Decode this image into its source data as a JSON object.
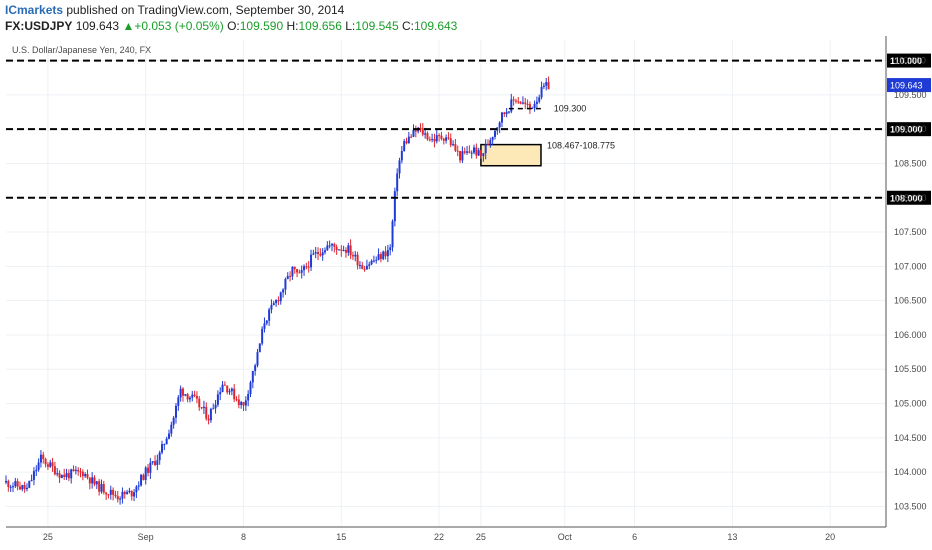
{
  "header": {
    "publisher": "ICmarkets",
    "published_text": "published on TradingView.com, September 30, 2014",
    "symbol": "FX:USDJPY",
    "last": "109.643",
    "change_arrow": "▲",
    "change": "+0.053 (+0.05%)",
    "o_label": "O:",
    "o_value": "109.590",
    "h_label": "H:",
    "h_value": "109.656",
    "l_label": "L:",
    "l_value": "109.545",
    "c_label": "C:",
    "c_value": "109.643"
  },
  "chart_data": {
    "type": "candlestick",
    "title": "U.S. Dollar/Japanese Yen, 240, FX",
    "x_tick_labels": [
      "25",
      "Sep",
      "8",
      "15",
      "22",
      "25",
      "Oct",
      "6",
      "13",
      "20"
    ],
    "x_tick_days": [
      -7,
      0,
      7,
      14,
      21,
      24,
      30,
      35,
      42,
      49
    ],
    "x_range_days": [
      -10,
      53
    ],
    "ylim": [
      103.2,
      110.3
    ],
    "y_ticks": [
      103.5,
      104.0,
      104.5,
      105.0,
      105.5,
      106.0,
      106.5,
      107.0,
      107.5,
      108.0,
      108.5,
      109.0,
      109.5,
      110.0
    ],
    "y_tick_labels": [
      "103.500",
      "104.000",
      "104.500",
      "105.000",
      "105.500",
      "106.000",
      "106.500",
      "107.000",
      "107.500",
      "108.000",
      "108.500",
      "109.000",
      "109.500",
      "110.000"
    ],
    "levels": [
      {
        "price": 110.0,
        "label": "110.000",
        "style": "dashed"
      },
      {
        "price": 109.0,
        "label": "109.000",
        "style": "dashed"
      },
      {
        "price": 108.0,
        "label": "108.000",
        "style": "dashed"
      }
    ],
    "short_level": {
      "price": 109.3,
      "label": "109.300",
      "from_day": 26.0,
      "to_day": 28.5
    },
    "zone": {
      "from": 108.467,
      "to": 108.775,
      "label": "108.467-108.775",
      "from_day": 24.0,
      "to_day": 28.3
    },
    "current_price": {
      "value": 109.643,
      "label": "109.643"
    },
    "colors": {
      "up": "#1f3bd6",
      "down": "#e0262c",
      "zone_fill": "#fde9b8",
      "level_line": "#000000",
      "price_tag": "#1f3bd6"
    },
    "close_anchors": [
      [
        -10.0,
        103.85
      ],
      [
        -8.5,
        103.75
      ],
      [
        -7.5,
        104.2
      ],
      [
        -6.0,
        103.95
      ],
      [
        -4.5,
        104.0
      ],
      [
        -3.5,
        103.8
      ],
      [
        -2.0,
        103.65
      ],
      [
        -1.0,
        103.7
      ],
      [
        0.0,
        104.0
      ],
      [
        1.0,
        104.25
      ],
      [
        2.0,
        104.8
      ],
      [
        2.5,
        105.2
      ],
      [
        3.5,
        105.05
      ],
      [
        4.5,
        104.8
      ],
      [
        5.5,
        105.3
      ],
      [
        6.0,
        105.2
      ],
      [
        7.0,
        104.95
      ],
      [
        8.0,
        105.7
      ],
      [
        8.5,
        106.2
      ],
      [
        9.5,
        106.55
      ],
      [
        10.5,
        106.95
      ],
      [
        11.0,
        106.85
      ],
      [
        12.0,
        107.15
      ],
      [
        13.0,
        107.3
      ],
      [
        14.5,
        107.25
      ],
      [
        15.5,
        107.0
      ],
      [
        16.5,
        107.1
      ],
      [
        17.5,
        107.25
      ],
      [
        18.0,
        108.4
      ],
      [
        18.5,
        108.8
      ],
      [
        19.5,
        109.0
      ],
      [
        20.5,
        108.85
      ],
      [
        21.5,
        108.9
      ],
      [
        22.5,
        108.6
      ],
      [
        23.5,
        108.7
      ],
      [
        24.0,
        108.6
      ],
      [
        25.0,
        109.0
      ],
      [
        25.5,
        109.2
      ],
      [
        26.5,
        109.45
      ],
      [
        27.5,
        109.3
      ],
      [
        28.5,
        109.6
      ],
      [
        29.0,
        109.65
      ]
    ],
    "candle_step_days": 0.1667
  }
}
